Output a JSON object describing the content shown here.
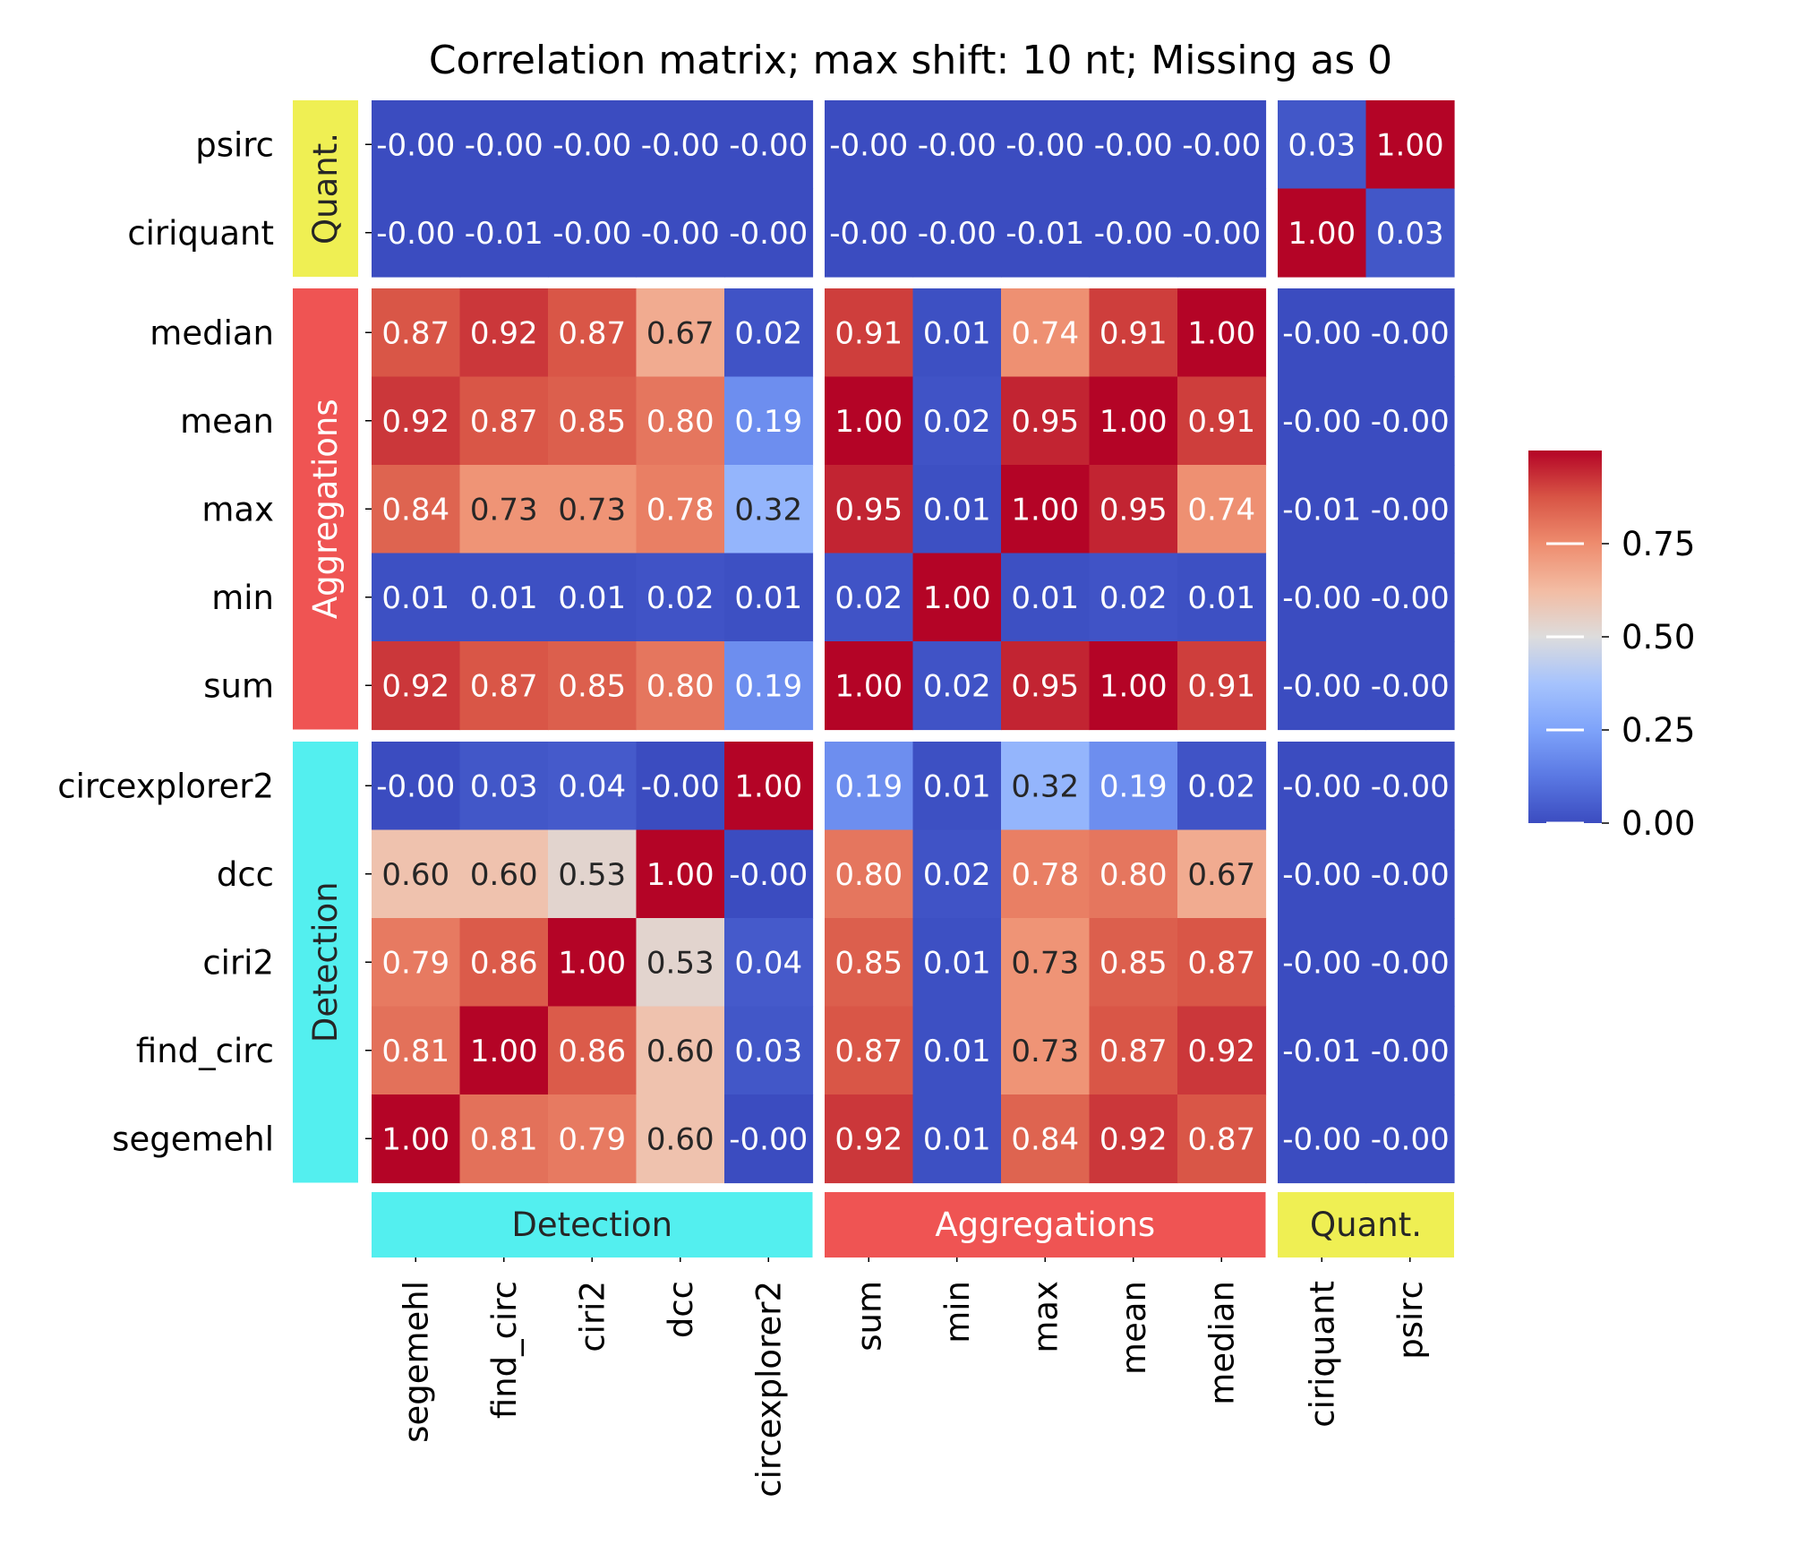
{
  "chart_data": {
    "type": "heatmap",
    "title": "Correlation matrix; max shift: 10 nt; Missing as 0",
    "columns": [
      "segemehl",
      "find_circ",
      "ciri2",
      "dcc",
      "circexplorer2",
      "sum",
      "min",
      "max",
      "mean",
      "median",
      "ciriquant",
      "psirc"
    ],
    "rows": [
      "psirc",
      "ciriquant",
      "median",
      "mean",
      "max",
      "min",
      "sum",
      "circexplorer2",
      "dcc",
      "ciri2",
      "find_circ",
      "segemehl"
    ],
    "column_groups": [
      {
        "label": "Detection",
        "size": 5,
        "color": "#53efef"
      },
      {
        "label": "Aggregations",
        "size": 5,
        "color": "#ef5453"
      },
      {
        "label": "Quant.",
        "size": 2,
        "color": "#efef53"
      }
    ],
    "row_groups": [
      {
        "label": "Quant.",
        "size": 2,
        "color": "#efef53"
      },
      {
        "label": "Aggregations",
        "size": 5,
        "color": "#ef5453"
      },
      {
        "label": "Detection",
        "size": 5,
        "color": "#53efef"
      }
    ],
    "values": [
      [
        "-0.00",
        "-0.00",
        "-0.00",
        "-0.00",
        "-0.00",
        "-0.00",
        "-0.00",
        "-0.00",
        "-0.00",
        "-0.00",
        "0.03",
        "1.00"
      ],
      [
        "-0.00",
        "-0.01",
        "-0.00",
        "-0.00",
        "-0.00",
        "-0.00",
        "-0.00",
        "-0.01",
        "-0.00",
        "-0.00",
        "1.00",
        "0.03"
      ],
      [
        "0.87",
        "0.92",
        "0.87",
        "0.67",
        "0.02",
        "0.91",
        "0.01",
        "0.74",
        "0.91",
        "1.00",
        "-0.00",
        "-0.00"
      ],
      [
        "0.92",
        "0.87",
        "0.85",
        "0.80",
        "0.19",
        "1.00",
        "0.02",
        "0.95",
        "1.00",
        "0.91",
        "-0.00",
        "-0.00"
      ],
      [
        "0.84",
        "0.73",
        "0.73",
        "0.78",
        "0.32",
        "0.95",
        "0.01",
        "1.00",
        "0.95",
        "0.74",
        "-0.01",
        "-0.00"
      ],
      [
        "0.01",
        "0.01",
        "0.01",
        "0.02",
        "0.01",
        "0.02",
        "1.00",
        "0.01",
        "0.02",
        "0.01",
        "-0.00",
        "-0.00"
      ],
      [
        "0.92",
        "0.87",
        "0.85",
        "0.80",
        "0.19",
        "1.00",
        "0.02",
        "0.95",
        "1.00",
        "0.91",
        "-0.00",
        "-0.00"
      ],
      [
        "-0.00",
        "0.03",
        "0.04",
        "-0.00",
        "1.00",
        "0.19",
        "0.01",
        "0.32",
        "0.19",
        "0.02",
        "-0.00",
        "-0.00"
      ],
      [
        "0.60",
        "0.60",
        "0.53",
        "1.00",
        "-0.00",
        "0.80",
        "0.02",
        "0.78",
        "0.80",
        "0.67",
        "-0.00",
        "-0.00"
      ],
      [
        "0.79",
        "0.86",
        "1.00",
        "0.53",
        "0.04",
        "0.85",
        "0.01",
        "0.73",
        "0.85",
        "0.87",
        "-0.00",
        "-0.00"
      ],
      [
        "0.81",
        "1.00",
        "0.86",
        "0.60",
        "0.03",
        "0.87",
        "0.01",
        "0.73",
        "0.87",
        "0.92",
        "-0.01",
        "-0.00"
      ],
      [
        "1.00",
        "0.81",
        "0.79",
        "0.60",
        "-0.00",
        "0.92",
        "0.01",
        "0.84",
        "0.92",
        "0.87",
        "-0.00",
        "-0.00"
      ]
    ],
    "colormap": "coolwarm",
    "vmin": 0,
    "vmax": 1,
    "colorbar_ticks": [
      "0.00",
      "0.25",
      "0.50",
      "0.75"
    ],
    "legend_placement": "right",
    "grid": false
  }
}
